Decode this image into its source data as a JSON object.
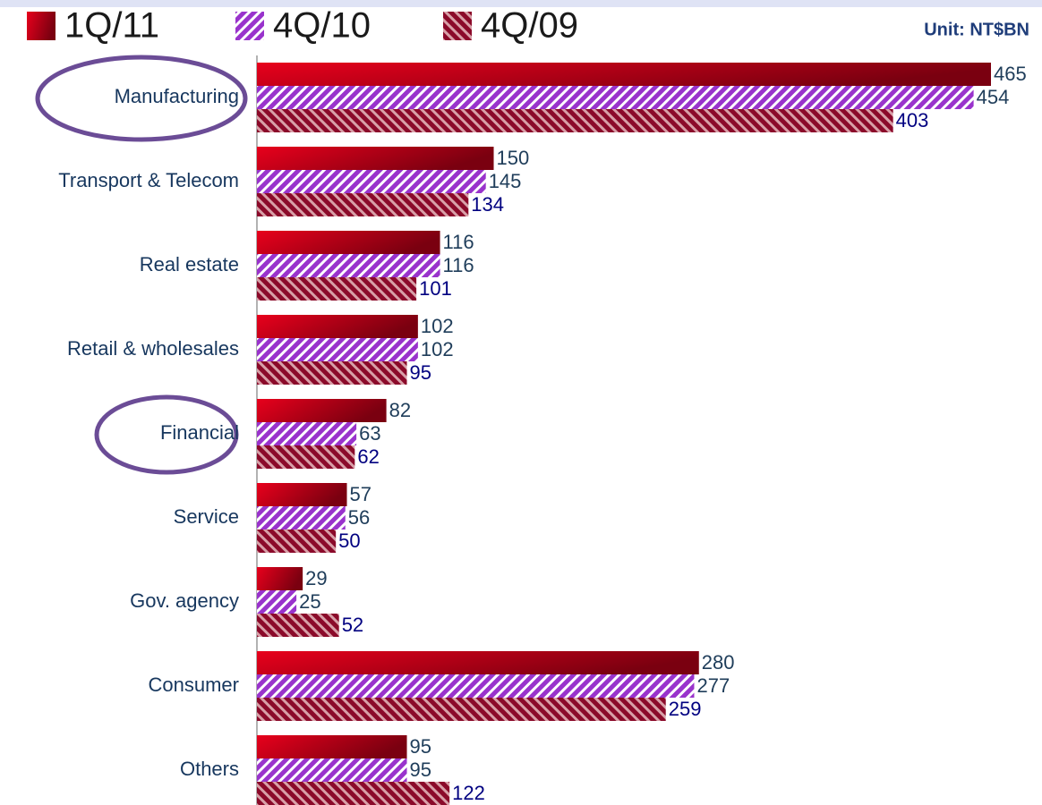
{
  "chart_data": {
    "type": "bar",
    "orientation": "horizontal",
    "unit": "Unit: NT$BN",
    "categories": [
      "Manufacturing",
      "Transport & Telecom",
      "Real estate",
      "Retail & wholesales",
      "Financial",
      "Service",
      "Gov. agency",
      "Consumer",
      "Others"
    ],
    "series": [
      {
        "name": "1Q/11",
        "color": "#e8001c",
        "fill": "gradient",
        "values": [
          465,
          150,
          116,
          102,
          82,
          57,
          29,
          280,
          95
        ]
      },
      {
        "name": "4Q/10",
        "color": "#9933cc",
        "fill": "hatch-forward",
        "values": [
          454,
          145,
          116,
          102,
          63,
          56,
          25,
          277,
          95
        ]
      },
      {
        "name": "4Q/09",
        "color": "#8b0a2a",
        "fill": "hatch-back",
        "values": [
          403,
          134,
          101,
          95,
          62,
          50,
          52,
          259,
          122
        ]
      }
    ]
  }
}
